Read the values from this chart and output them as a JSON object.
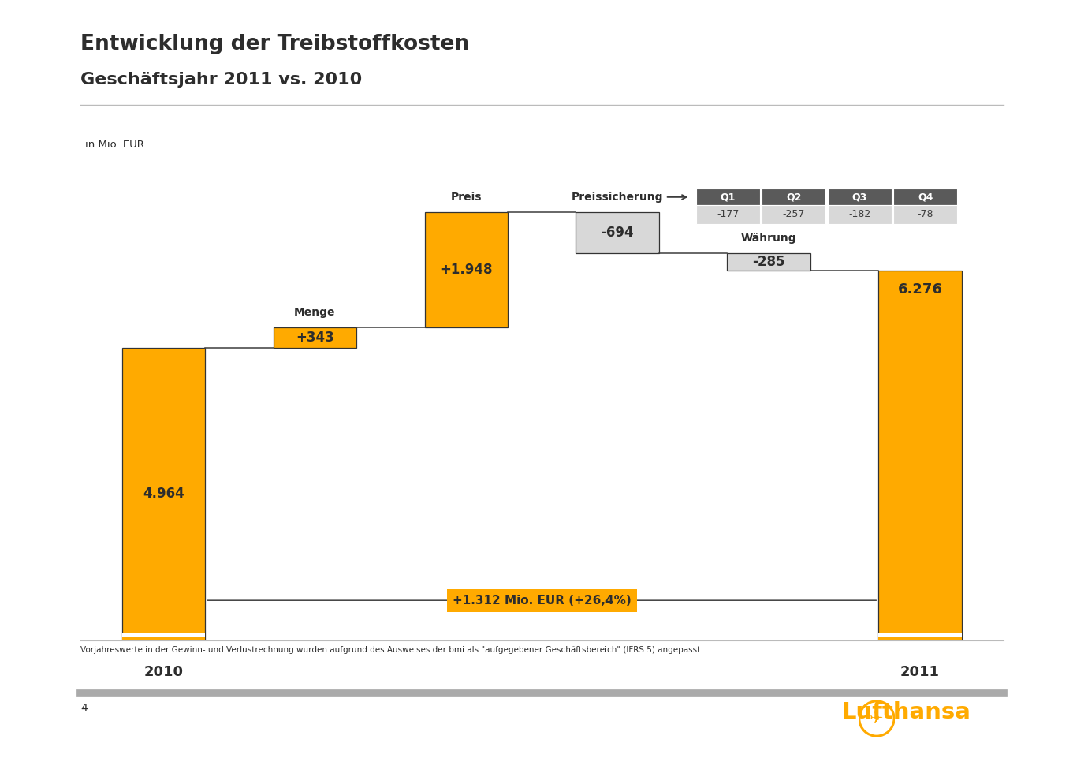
{
  "title1": "Entwicklung der Treibstoffkosten",
  "title2": "Geschäftsjahr 2011 vs. 2010",
  "unit_label": "in Mio. EUR",
  "footnote": "Vorjahreswerte in der Gewinn- und Verlustrechnung wurden aufgrund des Ausweises der bmi als \"aufgegebener Geschäftsbereich\" (IFRS 5) angepasst.",
  "page_number": "4",
  "bars": [
    {
      "label": "2010",
      "value": 4964,
      "base": 0,
      "type": "absolute",
      "color": "#FFAA00",
      "text": "4.964",
      "text_inside": true
    },
    {
      "label": "Menge",
      "value": 343,
      "base": 4964,
      "type": "delta_pos",
      "color": "#FFAA00",
      "text": "+343",
      "text_inside": true,
      "sublabel": "Menge"
    },
    {
      "label": "Preis",
      "value": 1948,
      "base": 5307,
      "type": "delta_pos",
      "color": "#FFAA00",
      "text": "+1.948",
      "text_inside": true,
      "sublabel": "Preis"
    },
    {
      "label": "Preissicherung",
      "value": -694,
      "base": 7255,
      "type": "delta_neg",
      "color": "#D8D8D8",
      "text": "-694",
      "text_inside": true,
      "sublabel": "Preissicherung"
    },
    {
      "label": "Währung",
      "value": -285,
      "base": 6561,
      "type": "delta_neg",
      "color": "#D8D8D8",
      "text": "-285",
      "text_inside": true,
      "sublabel": "Währung"
    },
    {
      "label": "2011",
      "value": 6276,
      "base": 0,
      "type": "absolute",
      "color": "#FFAA00",
      "text": "6.276",
      "text_inside": false
    }
  ],
  "q_table": {
    "headers": [
      "Q1",
      "Q2",
      "Q3",
      "Q4"
    ],
    "values": [
      "-177",
      "-257",
      "-182",
      "-78"
    ],
    "header_bg": "#5A5A5A",
    "value_bg": "#D8D8D8",
    "header_text": "#FFFFFF",
    "value_text": "#3D3D3D"
  },
  "arrow_label": "+1.312 Mio. EUR (+26,4%)",
  "arrow_color": "#FFAA00",
  "connector_color": "#3D3D3D",
  "background_color": "#FFFFFF",
  "lufthansa_color": "#FFAA00",
  "dark_text": "#2D2D2D",
  "x_positions": [
    0,
    1,
    2,
    3,
    4,
    5
  ],
  "bar_width": 0.55,
  "ylim_max": 8800
}
